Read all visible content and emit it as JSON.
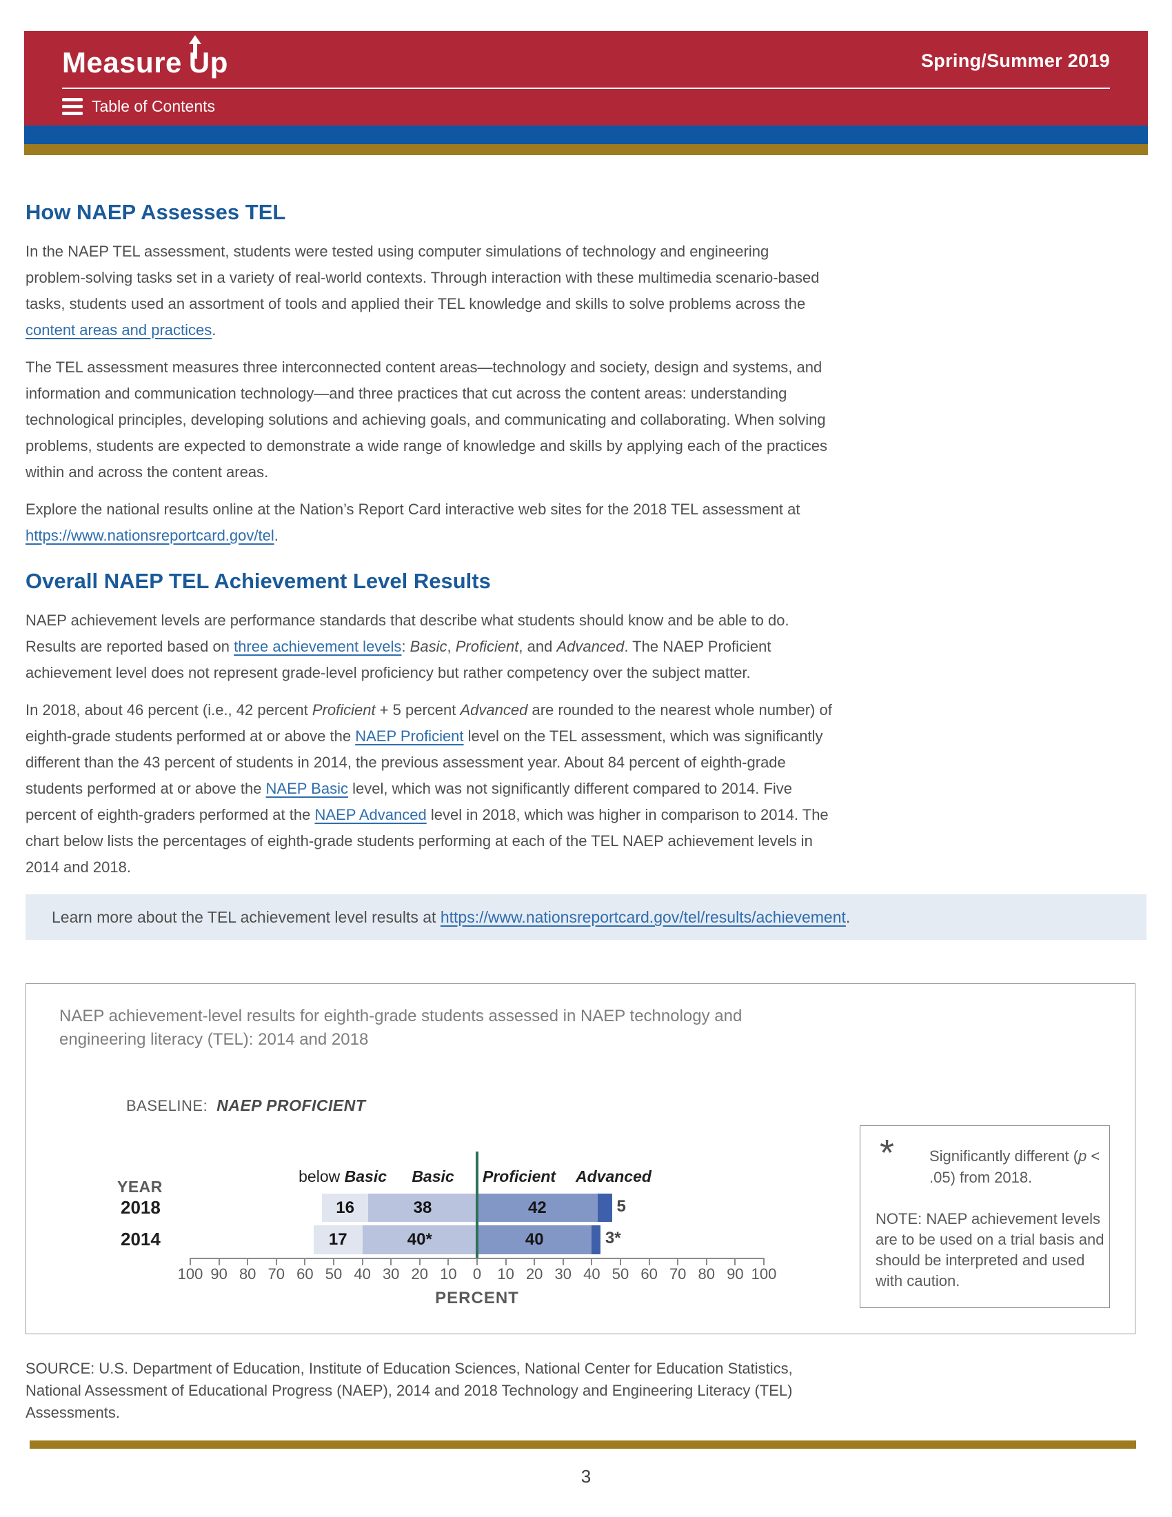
{
  "header": {
    "logo_part1": "Measure",
    "logo_part2": "Up",
    "toc_label": "Table of Contents",
    "issue": "Spring/Summer 2019"
  },
  "article": {
    "h1": "How NAEP Assesses TEL",
    "p1": [
      {
        "t": "In the NAEP TEL assessment, students were tested using computer simulations of technology and engineering problem-solving tasks set in a variety of real-world contexts. Through interaction with these multimedia scenario-based tasks, students used an assortment of tools and applied their TEL knowledge and skills to solve problems across the "
      },
      {
        "t": "content areas and practices",
        "s": "link"
      },
      {
        "t": "."
      }
    ],
    "p2": [
      {
        "t": "The TEL assessment measures three interconnected content areas—technology and society, design and systems, and information and communication technology—and three practices that cut across the content areas: understanding technological principles, developing solutions and achieving goals, and communicating and collaborating. When solving problems, students are expected to demonstrate a wide range of knowledge and skills by applying each of the practices within and across the content areas."
      }
    ],
    "p3": [
      {
        "t": "Explore the national results online at the Nation’s Report Card interactive web sites for the 2018 TEL assessment at "
      },
      {
        "t": "https://www.nationsreportcard.gov/tel",
        "s": "link"
      },
      {
        "t": "."
      }
    ],
    "h2": "Overall NAEP TEL Achievement Level Results",
    "p4": [
      {
        "t": "NAEP achievement levels are performance standards that describe what students should know and be able to do. Results are reported based on "
      },
      {
        "t": "three achievement levels",
        "s": "link"
      },
      {
        "t": ": "
      },
      {
        "t": "Basic",
        "s": "i"
      },
      {
        "t": ", "
      },
      {
        "t": "Proficient",
        "s": "i"
      },
      {
        "t": ", and "
      },
      {
        "t": "Advanced",
        "s": "i"
      },
      {
        "t": ". The NAEP Proficient achievement level does not represent grade-level proficiency but rather competency over the subject matter."
      }
    ],
    "p5": [
      {
        "t": "In 2018, about 46 percent (i.e., 42 percent "
      },
      {
        "t": "Proficient",
        "s": "i"
      },
      {
        "t": " + 5 percent "
      },
      {
        "t": "Advanced",
        "s": "i"
      },
      {
        "t": " are rounded to the nearest whole number) of eighth-grade students performed at or above the "
      },
      {
        "t": "NAEP Proficient",
        "s": "link"
      },
      {
        "t": " level on the TEL assessment, which was significantly different than the 43 percent of students in 2014, the previous assessment year. About 84 percent of eighth-grade students performed at or above the "
      },
      {
        "t": "NAEP Basic",
        "s": "link"
      },
      {
        "t": " level, which was not significantly different compared to 2014. Five percent of eighth-graders performed at the "
      },
      {
        "t": "NAEP Advanced",
        "s": "link"
      },
      {
        "t": " level in 2018, which was higher in comparison to 2014. The chart below lists the percentages of eighth-grade students performing at each of the TEL NAEP achievement levels in 2014 and 2018."
      }
    ],
    "callout": [
      {
        "t": "Learn more about the TEL achievement level results at "
      },
      {
        "t": "https://www.nationsreportcard.gov/tel/results/achievement",
        "s": "link"
      },
      {
        "t": "."
      }
    ]
  },
  "figure": {
    "title": "NAEP achievement-level results for eighth-grade students assessed in NAEP technology and engineering literacy (TEL): 2014 and 2018",
    "baseline_label": "BASELINE:",
    "baseline_value": "NAEP PROFICIENT",
    "year_label": "YEAR",
    "column_headers": [
      [
        {
          "t": "below "
        },
        {
          "t": "Basic",
          "s": "bi"
        }
      ],
      [
        {
          "t": "Basic",
          "s": "bi"
        }
      ],
      [
        {
          "t": "Proficient",
          "s": "bi"
        }
      ],
      [
        {
          "t": "Advanced",
          "s": "bi"
        }
      ]
    ],
    "axis_ticks": [
      "100",
      "90",
      "80",
      "70",
      "60",
      "50",
      "40",
      "30",
      "20",
      "10",
      "0",
      "10",
      "20",
      "30",
      "40",
      "50",
      "60",
      "70",
      "80",
      "90",
      "100"
    ],
    "axis_label": "PERCENT",
    "legend_symbol": "*",
    "legend_text": [
      {
        "t": "Significantly different ("
      },
      {
        "t": "p",
        "s": "i"
      },
      {
        "t": " < .05) from 2018."
      }
    ],
    "note": "NOTE: NAEP achievement levels are to be used on a trial basis and should be interpreted and used with caution."
  },
  "chart_data": {
    "type": "bar",
    "orientation": "horizontal_stacked_diverging",
    "title": "NAEP achievement-level results for eighth-grade students assessed in NAEP technology and engineering literacy (TEL): 2014 and 2018",
    "baseline": "NAEP PROFICIENT",
    "categories": [
      "below Basic",
      "Basic",
      "Proficient",
      "Advanced"
    ],
    "series": [
      {
        "name": "2018",
        "values": [
          16,
          38,
          42,
          5
        ],
        "labels": [
          "16",
          "38",
          "42",
          "5"
        ]
      },
      {
        "name": "2014",
        "values": [
          17,
          40,
          40,
          3
        ],
        "labels": [
          "17",
          "40*",
          "40",
          "3*"
        ]
      }
    ],
    "xlabel": "PERCENT",
    "xlim": [
      -100,
      100
    ],
    "grid": false,
    "segment_colors": [
      "#E1E5EF",
      "#B9C3DE",
      "#8297C6",
      "#3E5FA9"
    ],
    "baseline_color": "#2E7158",
    "star_note": "Significantly different (p < .05) from 2018."
  },
  "source": "SOURCE: U.S. Department of Education, Institute of Education Sciences, National Center for Education Statistics, National Assessment of Educational Progress (NAEP), 2014 and 2018 Technology and Engineering Literacy (TEL) Assessments.",
  "page_number": "3",
  "colors": {
    "header_red": "#B02838",
    "stripe_blue": "#0F57A2",
    "stripe_gold": "#9D7B1E",
    "heading_blue": "#1A5A99",
    "link_blue": "#2E6DAD",
    "body_text": "#4E4E4E",
    "callout_bg": "#E5EBF3",
    "figure_gray": "#5A5A5A"
  }
}
